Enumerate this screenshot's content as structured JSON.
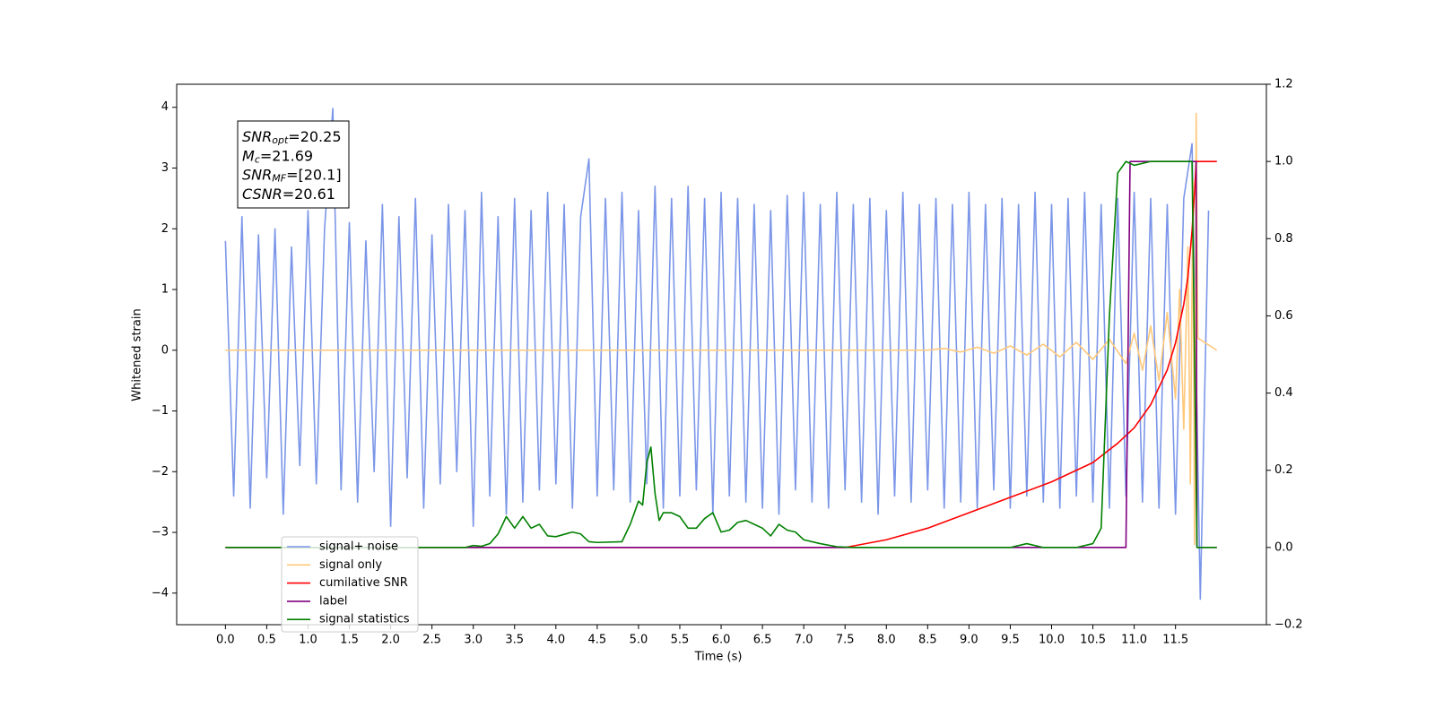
{
  "chart_data": {
    "type": "line",
    "xlabel": "Time (s)",
    "ylabel": "Whitened strain",
    "xlim": [
      -0.59,
      12.6
    ],
    "xticks": [
      {
        "value": 0,
        "label": "0.0"
      },
      0.5,
      {
        "value": 1,
        "label": "1.0"
      },
      1.5,
      {
        "value": 2,
        "label": "2.0"
      },
      2.5,
      {
        "value": 3,
        "label": "3.0"
      },
      3.5,
      {
        "value": 4,
        "label": "4.0"
      },
      4.5,
      {
        "value": 5,
        "label": "5.0"
      },
      5.5,
      {
        "value": 6,
        "label": "6.0"
      },
      6.5,
      {
        "value": 7,
        "label": "7.0"
      },
      7.5,
      {
        "value": 8,
        "label": "8.0"
      },
      8.5,
      {
        "value": 9,
        "label": "9.0"
      },
      9.5,
      {
        "value": 10,
        "label": "10.0"
      },
      10.5,
      {
        "value": 11,
        "label": "11.0"
      },
      11.5
    ],
    "ylim": [
      -4.52,
      4.38
    ],
    "yticks": [
      {
        "value": -4,
        "label": "−4"
      },
      {
        "value": -3,
        "label": "−3"
      },
      {
        "value": -2,
        "label": "−2"
      },
      {
        "value": -1,
        "label": "−1"
      },
      0,
      1,
      2,
      3,
      4
    ],
    "y2lim": [
      -0.2,
      1.2
    ],
    "y2ticks": [
      {
        "value": -0.2,
        "label": "−0.2"
      },
      {
        "value": 0,
        "label": "0.0"
      },
      0.2,
      0.4,
      0.6,
      0.8,
      {
        "value": 1,
        "label": "1.0"
      },
      1.2
    ],
    "legend": "lower left",
    "annotation": [
      {
        "main": "SNR",
        "sub": "opt",
        "rest": "=20.25"
      },
      {
        "main": "M",
        "sub": "c",
        "rest": "=21.69"
      },
      {
        "main": "SNR",
        "sub": "MF",
        "rest": "=[20.1]"
      },
      {
        "main": "CSNR",
        "rest": "=20.61"
      }
    ],
    "series": [
      {
        "name": "signal+ noise",
        "color": "#7b96e8",
        "x": [
          0,
          0.1,
          0.2,
          0.3,
          0.4,
          0.5,
          0.6,
          0.7,
          0.8,
          0.9,
          1,
          1.1,
          1.2,
          1.3,
          1.4,
          1.5,
          1.6,
          1.7,
          1.8,
          1.9,
          2,
          2.1,
          2.2,
          2.3,
          2.4,
          2.5,
          2.6,
          2.7,
          2.8,
          2.9,
          3,
          3.1,
          3.2,
          3.3,
          3.4,
          3.5,
          3.6,
          3.7,
          3.8,
          3.9,
          4,
          4.1,
          4.2,
          4.3,
          4.4,
          4.5,
          4.6,
          4.7,
          4.8,
          4.9,
          5,
          5.1,
          5.2,
          5.3,
          5.4,
          5.5,
          5.6,
          5.7,
          5.8,
          5.9,
          6,
          6.1,
          6.2,
          6.3,
          6.4,
          6.5,
          6.6,
          6.7,
          6.8,
          6.9,
          7,
          7.1,
          7.2,
          7.3,
          7.4,
          7.5,
          7.6,
          7.7,
          7.8,
          7.9,
          8,
          8.1,
          8.2,
          8.3,
          8.4,
          8.5,
          8.6,
          8.7,
          8.8,
          8.9,
          9,
          9.1,
          9.2,
          9.3,
          9.4,
          9.5,
          9.6,
          9.7,
          9.8,
          9.9,
          10,
          10.1,
          10.2,
          10.3,
          10.4,
          10.5,
          10.6,
          10.7,
          10.8,
          10.9,
          11,
          11.1,
          11.2,
          11.3,
          11.4,
          11.5,
          11.6,
          11.7,
          11.8,
          11.9
        ],
        "values": [
          1.8,
          -2.4,
          2.2,
          -2.6,
          1.9,
          -2.1,
          2.0,
          -2.7,
          1.7,
          -1.9,
          2.3,
          -2.2,
          2.0,
          3.98,
          -2.3,
          2.1,
          -2.5,
          1.8,
          -2.0,
          2.4,
          -2.9,
          2.2,
          -2.1,
          2.5,
          -2.6,
          1.9,
          -2.2,
          2.4,
          -2.0,
          2.3,
          -2.9,
          2.6,
          -2.4,
          2.2,
          -2.7,
          2.5,
          -2.5,
          2.3,
          -2.3,
          2.6,
          -2.2,
          2.4,
          -2.6,
          2.2,
          3.15,
          -2.4,
          2.5,
          -2.3,
          2.6,
          -2.5,
          2.3,
          -2.2,
          2.7,
          -2.6,
          2.5,
          -2.4,
          2.7,
          -2.3,
          2.5,
          -2.7,
          2.6,
          -2.4,
          2.5,
          -2.5,
          2.4,
          -2.6,
          2.3,
          -2.7,
          2.55,
          -2.3,
          2.6,
          -2.5,
          2.4,
          -2.6,
          2.6,
          -2.3,
          2.4,
          -2.5,
          2.5,
          -2.7,
          2.3,
          -2.4,
          2.6,
          -2.5,
          2.4,
          -2.3,
          2.5,
          -2.6,
          2.4,
          -2.5,
          2.6,
          -2.6,
          2.4,
          -2.3,
          2.5,
          -2.6,
          2.4,
          -2.4,
          2.6,
          -2.5,
          2.4,
          -2.6,
          2.5,
          -2.4,
          2.6,
          -2.5,
          2.4,
          -2.6,
          2.5,
          -2.4,
          2.6,
          -2.5,
          2.5,
          -2.6,
          2.4,
          -2.7,
          2.5,
          3.4,
          -4.1,
          2.3
        ]
      },
      {
        "name": "signal only",
        "color": "#ffc87a",
        "x": [
          0,
          8.5,
          8.7,
          8.9,
          9.1,
          9.3,
          9.5,
          9.7,
          9.9,
          10.1,
          10.3,
          10.5,
          10.7,
          10.9,
          11.0,
          11.1,
          11.2,
          11.3,
          11.4,
          11.5,
          11.55,
          11.6,
          11.65,
          11.68,
          11.71,
          11.73,
          11.75,
          11.77,
          12.0
        ],
        "values": [
          0,
          0,
          0.03,
          -0.03,
          0.05,
          -0.05,
          0.07,
          -0.08,
          0.1,
          -0.11,
          0.13,
          -0.15,
          0.18,
          -0.22,
          0.28,
          -0.33,
          0.4,
          -0.5,
          0.62,
          -0.8,
          1.0,
          -1.3,
          1.7,
          -2.2,
          2.8,
          -3.2,
          3.9,
          0.2,
          0
        ]
      },
      {
        "name": "cumilative SNR",
        "color": "#ff0000",
        "axis": "y2",
        "x": [
          0,
          7.5,
          8,
          8.5,
          9,
          9.5,
          10,
          10.5,
          10.8,
          11,
          11.2,
          11.4,
          11.5,
          11.6,
          11.65,
          11.7,
          11.73,
          11.75,
          12.0
        ],
        "values": [
          0,
          0,
          0.02,
          0.05,
          0.09,
          0.13,
          0.17,
          0.22,
          0.27,
          0.31,
          0.37,
          0.46,
          0.53,
          0.63,
          0.7,
          0.82,
          0.92,
          1.0,
          1.0
        ]
      },
      {
        "name": "label",
        "color": "#800080",
        "axis": "y2",
        "x": [
          0,
          10.9,
          10.95,
          11.75,
          11.76,
          12.0
        ],
        "values": [
          0,
          0,
          1,
          1,
          0,
          0
        ]
      },
      {
        "name": "signal statistics",
        "color": "#008000",
        "axis": "y2",
        "x": [
          0,
          2.9,
          3.0,
          3.1,
          3.2,
          3.3,
          3.4,
          3.5,
          3.6,
          3.7,
          3.8,
          3.9,
          4.0,
          4.2,
          4.3,
          4.4,
          4.5,
          4.8,
          4.9,
          5.0,
          5.05,
          5.1,
          5.15,
          5.2,
          5.25,
          5.3,
          5.4,
          5.5,
          5.6,
          5.7,
          5.8,
          5.9,
          6.0,
          6.1,
          6.2,
          6.3,
          6.4,
          6.5,
          6.6,
          6.7,
          6.8,
          6.9,
          7.0,
          7.2,
          7.4,
          7.6,
          9.5,
          9.7,
          9.9,
          10.3,
          10.5,
          10.6,
          10.7,
          10.8,
          10.9,
          11.0,
          11.2,
          11.7,
          11.76,
          12.0
        ],
        "values": [
          0,
          0,
          0.005,
          0.003,
          0.01,
          0.035,
          0.08,
          0.05,
          0.08,
          0.05,
          0.06,
          0.03,
          0.028,
          0.04,
          0.035,
          0.015,
          0.013,
          0.015,
          0.06,
          0.12,
          0.11,
          0.22,
          0.26,
          0.14,
          0.07,
          0.09,
          0.09,
          0.08,
          0.05,
          0.05,
          0.075,
          0.09,
          0.04,
          0.045,
          0.065,
          0.07,
          0.06,
          0.05,
          0.03,
          0.06,
          0.045,
          0.04,
          0.02,
          0.01,
          0.002,
          0,
          0,
          0.01,
          0,
          0,
          0.01,
          0.05,
          0.6,
          0.97,
          1.0,
          0.99,
          1.0,
          1.0,
          0,
          0
        ]
      }
    ]
  }
}
